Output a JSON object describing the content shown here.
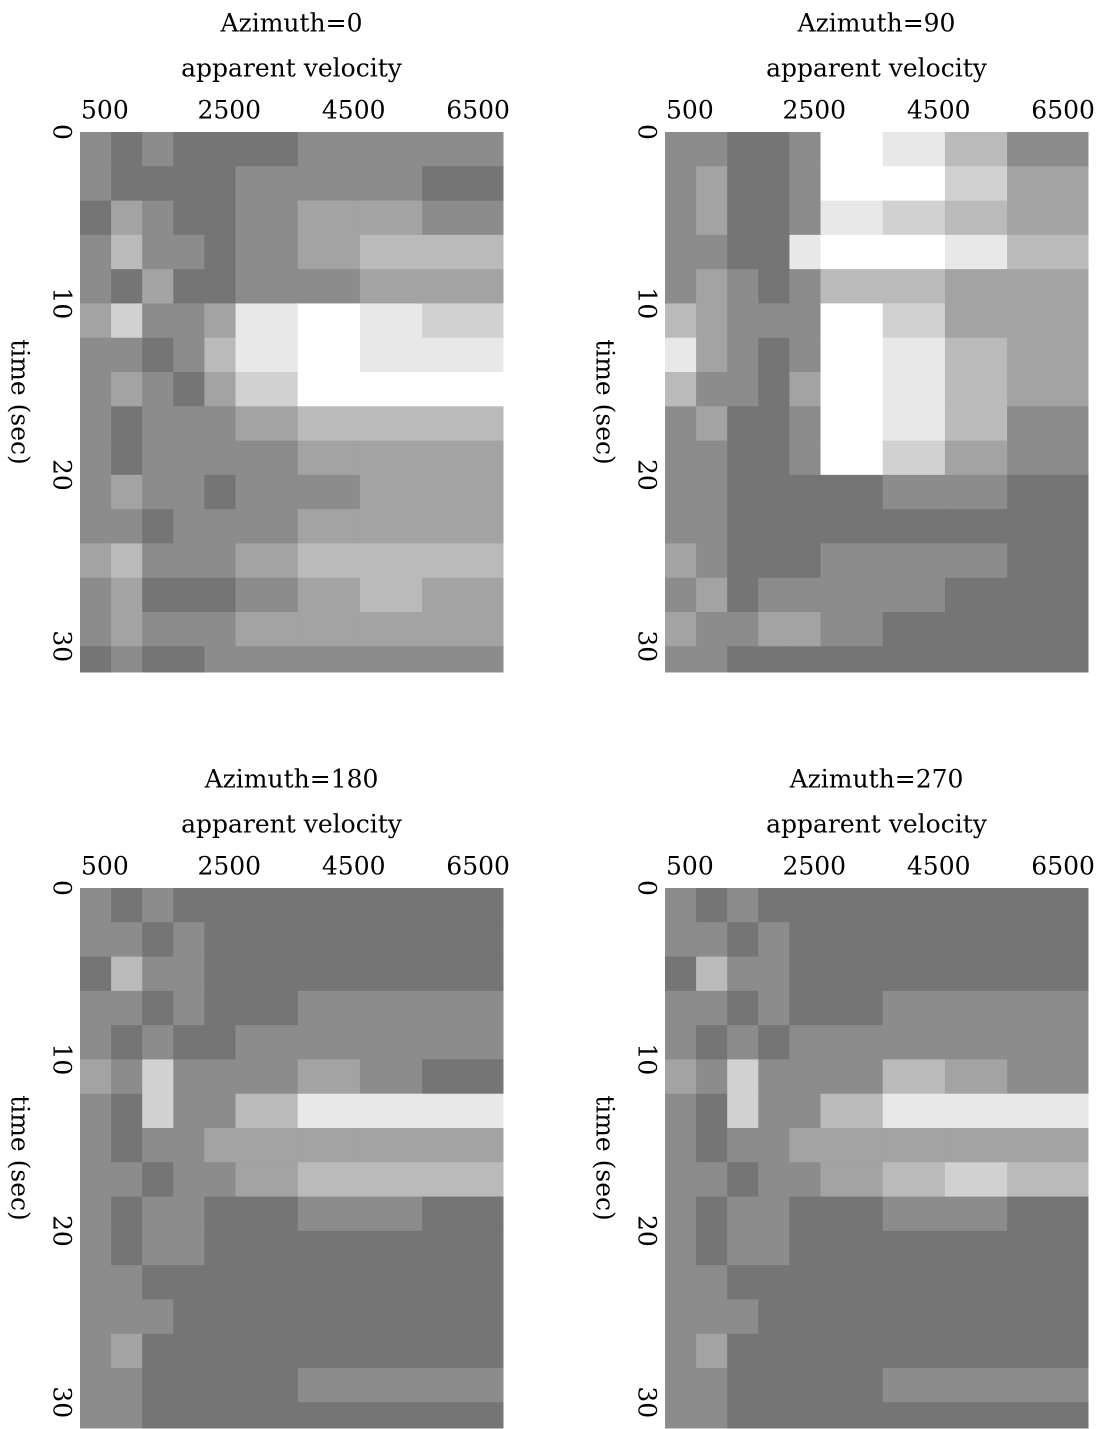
{
  "chart_data": [
    {
      "type": "heatmap",
      "title": "Azimuth=0",
      "xlabel": "apparent velocity",
      "ylabel": "time (sec)",
      "xlim": [
        100,
        6900
      ],
      "ylim": [
        0,
        31.5
      ],
      "xticks": [
        500,
        2500,
        4500,
        6500
      ],
      "yticks": [
        0,
        10,
        20,
        30
      ],
      "xbins": [
        100,
        600,
        1100,
        1600,
        2100,
        2600,
        3600,
        4600,
        5600,
        6900
      ],
      "ybins": [
        0,
        2,
        4,
        6,
        8,
        10,
        12,
        14,
        16,
        18,
        20,
        22,
        24,
        26,
        28,
        30,
        31.5
      ],
      "colorlim": [
        0,
        9
      ],
      "z": [
        [
          4,
          3,
          4,
          3,
          3,
          3,
          4,
          4,
          4
        ],
        [
          4,
          3,
          3,
          3,
          3,
          4,
          4,
          4,
          3
        ],
        [
          3,
          5,
          4,
          3,
          3,
          4,
          5,
          5,
          4
        ],
        [
          4,
          6,
          4,
          4,
          3,
          4,
          5,
          6,
          6
        ],
        [
          4,
          3,
          5,
          3,
          3,
          4,
          4,
          5,
          5
        ],
        [
          5,
          7,
          4,
          4,
          5,
          8,
          9,
          8,
          7
        ],
        [
          4,
          4,
          3,
          4,
          6,
          8,
          9,
          8,
          8
        ],
        [
          4,
          5,
          4,
          3,
          5,
          7,
          9,
          9,
          9
        ],
        [
          4,
          3,
          4,
          4,
          4,
          5,
          6,
          6,
          6
        ],
        [
          4,
          3,
          4,
          4,
          4,
          4,
          5,
          5,
          5
        ],
        [
          4,
          5,
          4,
          4,
          3,
          4,
          4,
          5,
          5
        ],
        [
          4,
          4,
          3,
          4,
          4,
          4,
          5,
          5,
          5
        ],
        [
          5,
          6,
          4,
          4,
          4,
          5,
          6,
          6,
          6
        ],
        [
          4,
          5,
          3,
          3,
          3,
          4,
          5,
          6,
          5
        ],
        [
          4,
          5,
          4,
          4,
          4,
          5,
          5,
          5,
          5
        ],
        [
          3,
          4,
          3,
          3,
          4,
          4,
          4,
          4,
          4
        ]
      ]
    },
    {
      "type": "heatmap",
      "title": "Azimuth=90",
      "xlabel": "apparent velocity",
      "ylabel": "time (sec)",
      "xlim": [
        100,
        6900
      ],
      "ylim": [
        0,
        31.5
      ],
      "xticks": [
        500,
        2500,
        4500,
        6500
      ],
      "yticks": [
        0,
        10,
        20,
        30
      ],
      "xbins": [
        100,
        600,
        1100,
        1600,
        2100,
        2600,
        3600,
        4600,
        5600,
        6900
      ],
      "ybins": [
        0,
        2,
        4,
        6,
        8,
        10,
        12,
        14,
        16,
        18,
        20,
        22,
        24,
        26,
        28,
        30,
        31.5
      ],
      "colorlim": [
        0,
        9
      ],
      "z": [
        [
          4,
          4,
          3,
          3,
          4,
          9,
          8,
          6,
          4
        ],
        [
          4,
          5,
          3,
          3,
          4,
          9,
          9,
          7,
          5
        ],
        [
          4,
          5,
          3,
          3,
          4,
          8,
          7,
          6,
          5
        ],
        [
          4,
          4,
          3,
          3,
          8,
          9,
          9,
          8,
          6
        ],
        [
          4,
          5,
          4,
          3,
          4,
          6,
          6,
          5,
          5
        ],
        [
          6,
          5,
          4,
          4,
          4,
          9,
          7,
          5,
          5
        ],
        [
          8,
          5,
          4,
          3,
          4,
          9,
          8,
          6,
          5
        ],
        [
          6,
          4,
          4,
          3,
          5,
          9,
          8,
          6,
          5
        ],
        [
          4,
          5,
          3,
          3,
          4,
          9,
          8,
          6,
          4
        ],
        [
          4,
          4,
          3,
          3,
          4,
          9,
          7,
          5,
          4
        ],
        [
          4,
          4,
          3,
          3,
          3,
          3,
          4,
          4,
          3
        ],
        [
          4,
          4,
          3,
          3,
          3,
          3,
          3,
          3,
          3
        ],
        [
          5,
          4,
          3,
          3,
          3,
          4,
          4,
          4,
          3
        ],
        [
          4,
          5,
          3,
          4,
          4,
          4,
          4,
          3,
          3
        ],
        [
          5,
          4,
          4,
          5,
          5,
          4,
          3,
          3,
          3
        ],
        [
          4,
          4,
          3,
          3,
          3,
          3,
          3,
          3,
          3
        ]
      ]
    },
    {
      "type": "heatmap",
      "title": "Azimuth=180",
      "xlabel": "apparent velocity",
      "ylabel": "time (sec)",
      "xlim": [
        100,
        6900
      ],
      "ylim": [
        0,
        31.5
      ],
      "xticks": [
        500,
        2500,
        4500,
        6500
      ],
      "yticks": [
        0,
        10,
        20,
        30
      ],
      "xbins": [
        100,
        600,
        1100,
        1600,
        2100,
        2600,
        3600,
        4600,
        5600,
        6900
      ],
      "ybins": [
        0,
        2,
        4,
        6,
        8,
        10,
        12,
        14,
        16,
        18,
        20,
        22,
        24,
        26,
        28,
        30,
        31.5
      ],
      "colorlim": [
        0,
        9
      ],
      "z": [
        [
          4,
          3,
          4,
          3,
          3,
          3,
          3,
          3,
          3
        ],
        [
          4,
          4,
          3,
          4,
          3,
          3,
          3,
          3,
          3
        ],
        [
          3,
          6,
          4,
          4,
          3,
          3,
          3,
          3,
          3
        ],
        [
          4,
          4,
          3,
          4,
          3,
          3,
          4,
          4,
          4
        ],
        [
          4,
          3,
          4,
          3,
          3,
          4,
          4,
          4,
          4
        ],
        [
          5,
          4,
          7,
          4,
          4,
          4,
          5,
          4,
          3
        ],
        [
          4,
          3,
          7,
          4,
          4,
          6,
          8,
          8,
          8
        ],
        [
          4,
          3,
          4,
          4,
          5,
          5,
          5,
          5,
          5
        ],
        [
          4,
          4,
          3,
          4,
          4,
          5,
          6,
          6,
          6
        ],
        [
          4,
          3,
          4,
          4,
          3,
          3,
          4,
          4,
          3
        ],
        [
          4,
          3,
          4,
          4,
          3,
          3,
          3,
          3,
          3
        ],
        [
          4,
          4,
          3,
          3,
          3,
          3,
          3,
          3,
          3
        ],
        [
          4,
          4,
          4,
          3,
          3,
          3,
          3,
          3,
          3
        ],
        [
          4,
          5,
          3,
          3,
          3,
          3,
          3,
          3,
          3
        ],
        [
          4,
          4,
          3,
          3,
          3,
          3,
          4,
          4,
          4
        ],
        [
          4,
          4,
          3,
          3,
          3,
          3,
          3,
          3,
          3
        ]
      ]
    },
    {
      "type": "heatmap",
      "title": "Azimuth=270",
      "xlabel": "apparent velocity",
      "ylabel": "time (sec)",
      "xlim": [
        100,
        6900
      ],
      "ylim": [
        0,
        31.5
      ],
      "xticks": [
        500,
        2500,
        4500,
        6500
      ],
      "yticks": [
        0,
        10,
        20,
        30
      ],
      "xbins": [
        100,
        600,
        1100,
        1600,
        2100,
        2600,
        3600,
        4600,
        5600,
        6900
      ],
      "ybins": [
        0,
        2,
        4,
        6,
        8,
        10,
        12,
        14,
        16,
        18,
        20,
        22,
        24,
        26,
        28,
        30,
        31.5
      ],
      "colorlim": [
        0,
        9
      ],
      "z": [
        [
          4,
          3,
          4,
          3,
          3,
          3,
          3,
          3,
          3
        ],
        [
          4,
          4,
          3,
          4,
          3,
          3,
          3,
          3,
          3
        ],
        [
          3,
          6,
          4,
          4,
          3,
          3,
          3,
          3,
          3
        ],
        [
          4,
          4,
          3,
          4,
          3,
          3,
          4,
          4,
          4
        ],
        [
          4,
          3,
          4,
          3,
          4,
          4,
          4,
          4,
          4
        ],
        [
          5,
          4,
          7,
          4,
          4,
          4,
          6,
          5,
          4
        ],
        [
          4,
          3,
          7,
          4,
          4,
          6,
          8,
          8,
          8
        ],
        [
          4,
          3,
          4,
          4,
          5,
          5,
          5,
          5,
          5
        ],
        [
          4,
          4,
          3,
          4,
          4,
          5,
          6,
          7,
          6
        ],
        [
          4,
          3,
          4,
          4,
          3,
          3,
          4,
          4,
          3
        ],
        [
          4,
          3,
          4,
          4,
          3,
          3,
          3,
          3,
          3
        ],
        [
          4,
          4,
          3,
          3,
          3,
          3,
          3,
          3,
          3
        ],
        [
          4,
          4,
          4,
          3,
          3,
          3,
          3,
          3,
          3
        ],
        [
          4,
          5,
          3,
          3,
          3,
          3,
          3,
          3,
          3
        ],
        [
          4,
          4,
          3,
          3,
          3,
          3,
          4,
          4,
          4
        ],
        [
          4,
          4,
          3,
          3,
          3,
          3,
          3,
          3,
          3
        ]
      ]
    }
  ]
}
